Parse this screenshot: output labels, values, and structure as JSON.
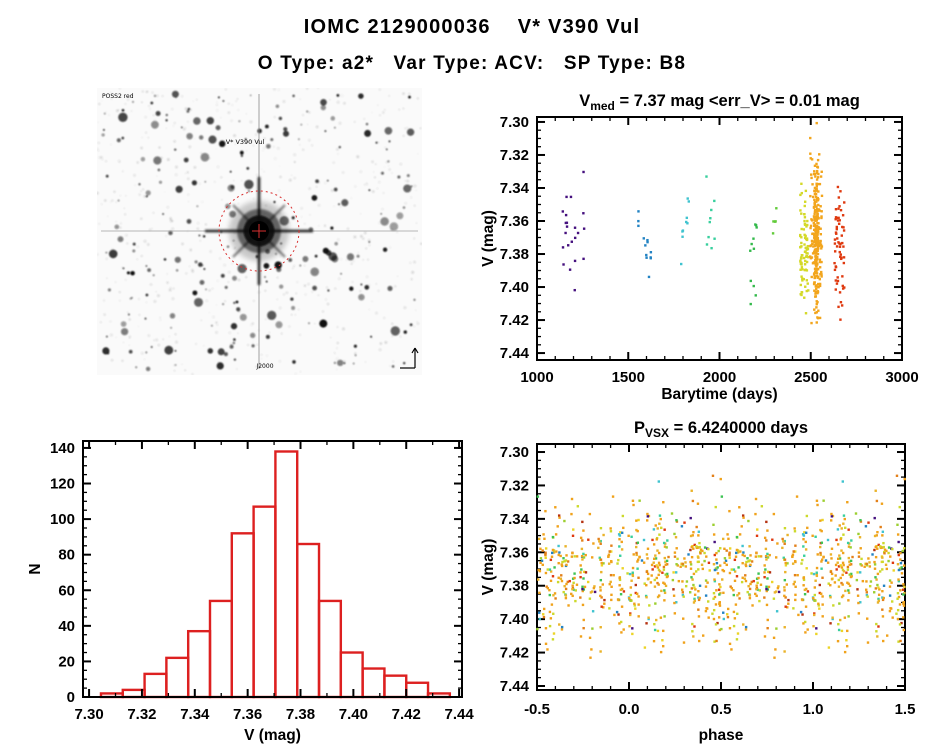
{
  "header": {
    "title": "IOMC 2129000036    V* V390 Vul",
    "subtitle": "O Type: a2*   Var Type: ACV:   SP Type: B8"
  },
  "finder_chart": {
    "survey_label": "POSS2 red",
    "target_label": "V* V390 Vul",
    "coords_label": "J2000",
    "marker_color": "#d93030",
    "label_color": "#3a3acc",
    "seed": 11,
    "n_stars": 240
  },
  "chart_data": [
    {
      "id": "lightcurve",
      "type": "scatter",
      "title_parts": [
        {
          "text": "V"
        },
        {
          "text": "med",
          "sub": true
        },
        {
          "text": " = 7.37 mag <err_V> = 0.01 mag"
        }
      ],
      "xlabel": "Barytime (days)",
      "ylabel": "V (mag)",
      "xlim": [
        1000,
        3000
      ],
      "ylim": [
        7.44,
        7.3
      ],
      "y_axis_inverted": true,
      "xticks": [
        [
          1000,
          "1000"
        ],
        [
          1500,
          "1500"
        ],
        [
          2000,
          "2000"
        ],
        [
          2500,
          "2500"
        ],
        [
          3000,
          "3000"
        ]
      ],
      "yticks": [
        [
          7.3,
          "7.30"
        ],
        [
          7.32,
          "7.32"
        ],
        [
          7.34,
          "7.34"
        ],
        [
          7.36,
          "7.36"
        ],
        [
          7.38,
          "7.38"
        ],
        [
          7.4,
          "7.40"
        ],
        [
          7.42,
          "7.42"
        ],
        [
          7.44,
          "7.44"
        ]
      ],
      "x_minor_step": 100,
      "y_minor_step": 0.005,
      "seed": 7,
      "clusters": [
        {
          "x": [
            1140,
            1265
          ],
          "n": 22,
          "color": "#45107e",
          "mean": 7.371,
          "sigma": 0.02,
          "clip": [
            7.314,
            7.403
          ]
        },
        {
          "x": [
            1555,
            1625
          ],
          "n": 13,
          "color": "#2383c3",
          "mean": 7.372,
          "sigma": 0.022,
          "clip": [
            7.33,
            7.412
          ]
        },
        {
          "x": [
            1790,
            1832
          ],
          "n": 9,
          "color": "#3fc3cf",
          "mean": 7.362,
          "sigma": 0.013,
          "clip": [
            7.343,
            7.393
          ]
        },
        {
          "x": [
            1925,
            1985
          ],
          "n": 9,
          "color": "#38cf9d",
          "mean": 7.364,
          "sigma": 0.02,
          "clip": [
            7.318,
            7.392
          ]
        },
        {
          "x": [
            2150,
            2205
          ],
          "n": 11,
          "color": "#33b94b",
          "mean": 7.384,
          "sigma": 0.02,
          "clip": [
            7.353,
            7.424
          ]
        },
        {
          "x": [
            2285,
            2312
          ],
          "n": 5,
          "color": "#62cb3a",
          "mean": 7.36,
          "sigma": 0.005,
          "clip": [
            7.352,
            7.368
          ]
        },
        {
          "x": [
            2442,
            2455
          ],
          "n": 34,
          "color": "#d4d928",
          "mean": 7.377,
          "sigma": 0.021,
          "clip": [
            7.331,
            7.424
          ]
        },
        {
          "x": [
            2462,
            2487
          ],
          "n": 50,
          "color": "#d4d928",
          "mean": 7.378,
          "sigma": 0.021,
          "clip": [
            7.334,
            7.424
          ]
        },
        {
          "x": [
            2497,
            2562
          ],
          "n": 120,
          "color": "#f2a51c",
          "mean": 7.37,
          "sigma": 0.024,
          "clip": [
            7.294,
            7.426
          ]
        },
        {
          "x": [
            2518,
            2542
          ],
          "n": 170,
          "color": "#f2a51c",
          "mean": 7.372,
          "sigma": 0.022,
          "clip": [
            7.298,
            7.424
          ]
        },
        {
          "x": [
            2630,
            2684
          ],
          "n": 60,
          "color": "#df390f",
          "mean": 7.379,
          "sigma": 0.02,
          "clip": [
            7.337,
            7.431
          ]
        }
      ]
    },
    {
      "id": "histogram",
      "type": "bar",
      "xlabel": "V (mag)",
      "ylabel": "N",
      "xlim": [
        7.3,
        7.44
      ],
      "ylim": [
        0,
        144
      ],
      "bin_start": 7.3045,
      "bin_width": 0.00825,
      "values": [
        2,
        4,
        13,
        22,
        37,
        54,
        92,
        107,
        138,
        86,
        54,
        25,
        16,
        12,
        8,
        2
      ],
      "xticks": [
        [
          7.3,
          "7.30"
        ],
        [
          7.32,
          "7.32"
        ],
        [
          7.34,
          "7.34"
        ],
        [
          7.36,
          "7.36"
        ],
        [
          7.38,
          "7.38"
        ],
        [
          7.4,
          "7.40"
        ],
        [
          7.42,
          "7.42"
        ],
        [
          7.44,
          "7.44"
        ]
      ],
      "yticks": [
        [
          0,
          "0"
        ],
        [
          20,
          "20"
        ],
        [
          40,
          "40"
        ],
        [
          60,
          "60"
        ],
        [
          80,
          "80"
        ],
        [
          100,
          "100"
        ],
        [
          120,
          "120"
        ],
        [
          140,
          "140"
        ]
      ],
      "x_minor_step": 0.01,
      "y_minor_step": 5,
      "color": "#dd2020"
    },
    {
      "id": "phase",
      "type": "scatter",
      "title_parts": [
        {
          "text": "P"
        },
        {
          "text": "VSX",
          "sub": true
        },
        {
          "text": " = 6.4240000 days"
        }
      ],
      "xlabel": "phase",
      "ylabel": "V (mag)",
      "xlim": [
        -0.5,
        1.5
      ],
      "ylim": [
        7.44,
        7.3
      ],
      "y_axis_inverted": true,
      "xticks": [
        [
          -0.5,
          "-0.5"
        ],
        [
          0,
          "0.0"
        ],
        [
          0.5,
          "0.5"
        ],
        [
          1,
          "1.0"
        ],
        [
          1.5,
          "1.5"
        ]
      ],
      "yticks": [
        [
          7.3,
          "7.30"
        ],
        [
          7.32,
          "7.32"
        ],
        [
          7.34,
          "7.34"
        ],
        [
          7.36,
          "7.36"
        ],
        [
          7.38,
          "7.38"
        ],
        [
          7.4,
          "7.40"
        ],
        [
          7.42,
          "7.42"
        ],
        [
          7.44,
          "7.44"
        ]
      ],
      "x_minor_step": 0.1,
      "y_minor_step": 0.005,
      "seed": 42,
      "n_points": 560,
      "mirror": true,
      "strips": {
        "centers": [
          0.015,
          0.05,
          0.1,
          0.14,
          0.165,
          0.2,
          0.25,
          0.3,
          0.345,
          0.38,
          0.42,
          0.47,
          0.5,
          0.545,
          0.585,
          0.625,
          0.655,
          0.7,
          0.745,
          0.8,
          0.85,
          0.9,
          0.955
        ],
        "sigma": 0.01
      },
      "mag": {
        "mean": 7.372,
        "sigma": 0.021,
        "clip": [
          7.296,
          7.432
        ]
      },
      "palette": [
        [
          "#f0a21b",
          0.4
        ],
        [
          "#eab32a",
          0.12
        ],
        [
          "#e3801a",
          0.08
        ],
        [
          "#ccd92b",
          0.1
        ],
        [
          "#ecd426",
          0.05
        ],
        [
          "#9ccf30",
          0.05
        ],
        [
          "#3dc353",
          0.04
        ],
        [
          "#38cf9d",
          0.03
        ],
        [
          "#3fc3cf",
          0.03
        ],
        [
          "#2383c3",
          0.03
        ],
        [
          "#45107e",
          0.02
        ],
        [
          "#df390f",
          0.03
        ],
        [
          "#b53212",
          0.02
        ]
      ]
    }
  ]
}
